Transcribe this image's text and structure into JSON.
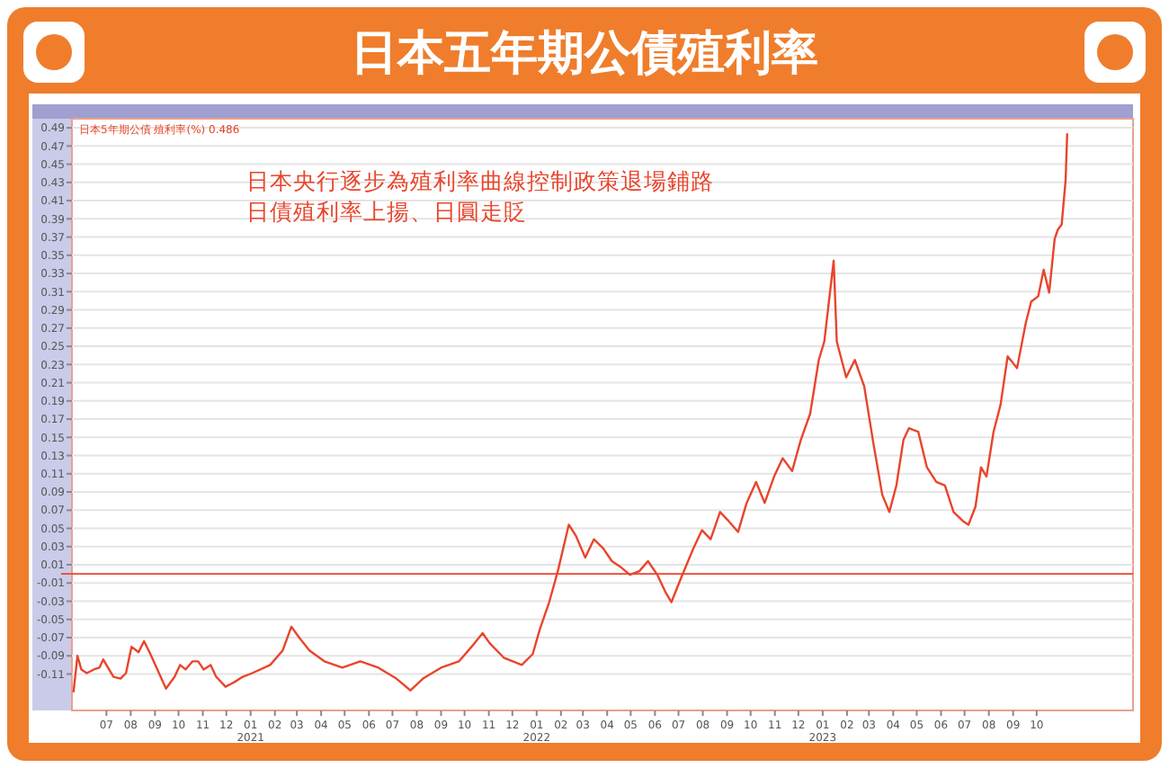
{
  "chart_data": {
    "type": "line",
    "title": "日本五年期公債殖利率",
    "annotations": [
      "日本5年期公債 殖利率(%) 0.486",
      "日本央行逐步為殖利率曲線控制政策退場鋪路",
      "日債殖利率上揚、日圓走貶"
    ],
    "series": [
      {
        "color": "#e8452c",
        "x": [
          "2020-05-20",
          "2020-05-25",
          "2020-05-30",
          "2020-06-06",
          "2020-06-15",
          "2020-06-22",
          "2020-06-27",
          "2020-07-03",
          "2020-07-10",
          "2020-07-19",
          "2020-07-26",
          "2020-08-02",
          "2020-08-11",
          "2020-08-18",
          "2020-08-25",
          "2020-09-03",
          "2020-09-15",
          "2020-09-26",
          "2020-10-03",
          "2020-10-10",
          "2020-10-19",
          "2020-10-26",
          "2020-11-02",
          "2020-11-11",
          "2020-11-18",
          "2020-11-30",
          "2020-12-11",
          "2020-12-22",
          "2021-01-03",
          "2021-01-26",
          "2021-02-11",
          "2021-02-22",
          "2021-03-04",
          "2021-03-17",
          "2021-04-05",
          "2021-04-28",
          "2021-05-21",
          "2021-06-13",
          "2021-07-06",
          "2021-07-24",
          "2021-08-09",
          "2021-09-01",
          "2021-09-24",
          "2021-10-10",
          "2021-10-24",
          "2021-11-02",
          "2021-11-20",
          "2021-12-13",
          "2021-12-27",
          "2022-01-05",
          "2022-01-17",
          "2022-01-28",
          "2022-02-11",
          "2022-02-20",
          "2022-03-04",
          "2022-03-15",
          "2022-03-27",
          "2022-04-07",
          "2022-04-19",
          "2022-04-30",
          "2022-05-12",
          "2022-05-23",
          "2022-06-04",
          "2022-06-15",
          "2022-06-22",
          "2022-07-04",
          "2022-07-20",
          "2022-07-31",
          "2022-08-11",
          "2022-08-23",
          "2022-09-03",
          "2022-09-15",
          "2022-09-26",
          "2022-10-08",
          "2022-10-19",
          "2022-10-31",
          "2022-11-11",
          "2022-11-23",
          "2022-12-04",
          "2022-12-16",
          "2022-12-27",
          "2023-01-03",
          "2023-01-15",
          "2023-01-19",
          "2023-01-31",
          "2023-02-11",
          "2023-02-23",
          "2023-03-06",
          "2023-03-18",
          "2023-03-27",
          "2023-04-05",
          "2023-04-14",
          "2023-04-21",
          "2023-05-03",
          "2023-05-14",
          "2023-05-26",
          "2023-06-06",
          "2023-06-17",
          "2023-06-29",
          "2023-07-06",
          "2023-07-15",
          "2023-07-22",
          "2023-07-29",
          "2023-08-07",
          "2023-08-16",
          "2023-08-25",
          "2023-09-06",
          "2023-09-17",
          "2023-09-24",
          "2023-10-03",
          "2023-10-10",
          "2023-10-17",
          "2023-10-24",
          "2023-10-28",
          "2023-11-02",
          "2023-11-07",
          "2023-11-09"
        ],
        "values": [
          -0.13,
          -0.09,
          -0.105,
          -0.109,
          -0.105,
          -0.103,
          -0.094,
          -0.103,
          -0.113,
          -0.115,
          -0.109,
          -0.08,
          -0.086,
          -0.074,
          -0.086,
          -0.103,
          -0.126,
          -0.113,
          -0.1,
          -0.105,
          -0.096,
          -0.096,
          -0.105,
          -0.1,
          -0.113,
          -0.124,
          -0.119,
          -0.113,
          -0.109,
          -0.1,
          -0.084,
          -0.058,
          -0.07,
          -0.084,
          -0.096,
          -0.103,
          -0.096,
          -0.103,
          -0.115,
          -0.128,
          -0.115,
          -0.103,
          -0.096,
          -0.08,
          -0.065,
          -0.076,
          -0.092,
          -0.1,
          -0.088,
          -0.061,
          -0.031,
          0.003,
          0.054,
          0.042,
          0.018,
          0.038,
          0.028,
          0.014,
          0.007,
          -0.001,
          0.003,
          0.014,
          -0.001,
          -0.021,
          -0.031,
          -0.005,
          0.028,
          0.048,
          0.038,
          0.068,
          0.058,
          0.046,
          0.078,
          0.101,
          0.078,
          0.107,
          0.127,
          0.113,
          0.147,
          0.176,
          0.235,
          0.255,
          0.344,
          0.255,
          0.216,
          0.235,
          0.206,
          0.147,
          0.087,
          0.068,
          0.097,
          0.147,
          0.16,
          0.156,
          0.117,
          0.101,
          0.097,
          0.068,
          0.058,
          0.054,
          0.074,
          0.117,
          0.107,
          0.156,
          0.186,
          0.239,
          0.226,
          0.275,
          0.299,
          0.305,
          0.334,
          0.309,
          0.368,
          0.378,
          0.384,
          0.433,
          0.484
        ]
      }
    ],
    "xlim": [
      "2020-05-18",
      "2024-02-01"
    ],
    "xticks": [
      {
        "value": "2020-07",
        "label": "07"
      },
      {
        "value": "2020-08",
        "label": "08"
      },
      {
        "value": "2020-09",
        "label": "09"
      },
      {
        "value": "2020-10",
        "label": "10"
      },
      {
        "value": "2020-11",
        "label": "11"
      },
      {
        "value": "2020-12",
        "label": "12"
      },
      {
        "value": "2021-01",
        "label": "01\n2021"
      },
      {
        "value": "2021-02",
        "label": "02"
      },
      {
        "value": "2021-03",
        "label": "03"
      },
      {
        "value": "2021-04",
        "label": "04"
      },
      {
        "value": "2021-05",
        "label": "05"
      },
      {
        "value": "2021-06",
        "label": "06"
      },
      {
        "value": "2021-07",
        "label": "07"
      },
      {
        "value": "2021-08",
        "label": "08"
      },
      {
        "value": "2021-09",
        "label": "09"
      },
      {
        "value": "2021-10",
        "label": "10"
      },
      {
        "value": "2021-11",
        "label": "11"
      },
      {
        "value": "2021-12",
        "label": "12"
      },
      {
        "value": "2022-01",
        "label": "01\n2022"
      },
      {
        "value": "2022-02",
        "label": "02"
      },
      {
        "value": "2022-03",
        "label": "03"
      },
      {
        "value": "2022-04",
        "label": "04"
      },
      {
        "value": "2022-05",
        "label": "05"
      },
      {
        "value": "2022-06",
        "label": "06"
      },
      {
        "value": "2022-07",
        "label": "07"
      },
      {
        "value": "2022-08",
        "label": "08"
      },
      {
        "value": "2022-09",
        "label": "09"
      },
      {
        "value": "2022-10",
        "label": "10"
      },
      {
        "value": "2022-11",
        "label": "11"
      },
      {
        "value": "2022-12",
        "label": "12"
      },
      {
        "value": "2023-01",
        "label": "01\n2023"
      },
      {
        "value": "2023-02",
        "label": "02"
      },
      {
        "value": "2023-03",
        "label": "03"
      },
      {
        "value": "2023-04",
        "label": "04"
      },
      {
        "value": "2023-05",
        "label": "05"
      },
      {
        "value": "2023-06",
        "label": "06"
      },
      {
        "value": "2023-07",
        "label": "07"
      },
      {
        "value": "2023-08",
        "label": "08"
      },
      {
        "value": "2023-09",
        "label": "09"
      },
      {
        "value": "2023-10",
        "label": "10"
      }
    ],
    "ylim": [
      -0.15,
      0.5
    ],
    "yticks": [
      0.49,
      0.47,
      0.45,
      0.43,
      0.41,
      0.39,
      0.37,
      0.35,
      0.33,
      0.31,
      0.29,
      0.27,
      0.25,
      0.23,
      0.21,
      0.19,
      0.17,
      0.15,
      0.13,
      0.11,
      0.09,
      0.07,
      0.05,
      0.03,
      0.01,
      -0.01,
      -0.03,
      -0.05,
      -0.07,
      -0.09,
      -0.11
    ],
    "grid": "y",
    "ref_lines": [
      {
        "axis": "y",
        "value": 0,
        "color": "#e8452c"
      }
    ],
    "line_style": "solid"
  }
}
